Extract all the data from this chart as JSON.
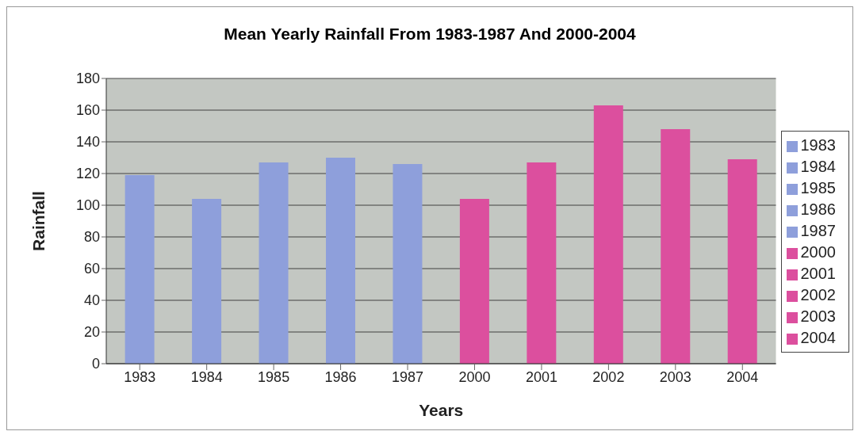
{
  "chart_data": {
    "type": "bar",
    "title": "Mean Yearly Rainfall From 1983-1987 And 2000-2004",
    "xlabel": "Years",
    "ylabel": "Rainfall",
    "categories": [
      "1983",
      "1984",
      "1985",
      "1986",
      "1987",
      "2000",
      "2001",
      "2002",
      "2003",
      "2004"
    ],
    "stacked": true,
    "series": [
      {
        "name": "1983",
        "color": "#8e9fdb",
        "values": [
          119,
          null,
          null,
          null,
          null,
          null,
          null,
          null,
          null,
          null
        ]
      },
      {
        "name": "1984",
        "color": "#8e9fdb",
        "values": [
          null,
          104,
          null,
          null,
          null,
          null,
          null,
          null,
          null,
          null
        ]
      },
      {
        "name": "1985",
        "color": "#8e9fdb",
        "values": [
          null,
          null,
          127,
          null,
          null,
          null,
          null,
          null,
          null,
          null
        ]
      },
      {
        "name": "1986",
        "color": "#8e9fdb",
        "values": [
          null,
          null,
          null,
          130,
          null,
          null,
          null,
          null,
          null,
          null
        ]
      },
      {
        "name": "1987",
        "color": "#8e9fdb",
        "values": [
          null,
          null,
          null,
          null,
          126,
          null,
          null,
          null,
          null,
          null
        ]
      },
      {
        "name": "2000",
        "color": "#dc4f9e",
        "values": [
          null,
          null,
          null,
          null,
          null,
          104,
          null,
          null,
          null,
          null
        ]
      },
      {
        "name": "2001",
        "color": "#dc4f9e",
        "values": [
          null,
          null,
          null,
          null,
          null,
          null,
          127,
          null,
          null,
          null
        ]
      },
      {
        "name": "2002",
        "color": "#dc4f9e",
        "values": [
          null,
          null,
          null,
          null,
          null,
          null,
          null,
          163,
          null,
          null
        ]
      },
      {
        "name": "2003",
        "color": "#dc4f9e",
        "values": [
          null,
          null,
          null,
          null,
          null,
          null,
          null,
          null,
          148,
          null
        ]
      },
      {
        "name": "2004",
        "color": "#dc4f9e",
        "values": [
          null,
          null,
          null,
          null,
          null,
          null,
          null,
          null,
          null,
          129
        ]
      }
    ],
    "ylim": [
      0,
      180
    ],
    "yticks": [
      0,
      20,
      40,
      60,
      80,
      100,
      120,
      140,
      160,
      180
    ],
    "grid": "y",
    "legend": "right"
  }
}
